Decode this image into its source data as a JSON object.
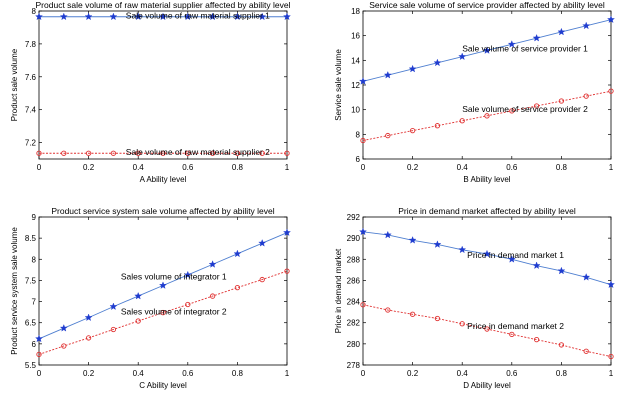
{
  "chart_data": [
    {
      "type": "line",
      "title": "Product sale volume of raw material supplier affected by ability level",
      "xlabel": "A   Ability level",
      "ylabel": "Product sale volume",
      "xlim": [
        0,
        1
      ],
      "ylim": [
        7.1,
        8
      ],
      "xticks": [
        0,
        0.2,
        0.4,
        0.6,
        0.8,
        1
      ],
      "yticks": [
        7.2,
        7.4,
        7.6,
        7.8,
        8
      ],
      "x": [
        0,
        0.1,
        0.2,
        0.3,
        0.4,
        0.5,
        0.6,
        0.7,
        0.8,
        0.9,
        1
      ],
      "series": [
        {
          "values": [
            7.965,
            7.965,
            7.965,
            7.965,
            7.965,
            7.965,
            7.965,
            7.965,
            7.965,
            7.965,
            7.965
          ],
          "color": "#1f3ccf",
          "line_color": "#4f7fd0",
          "marker": "star"
        },
        {
          "values": [
            7.135,
            7.135,
            7.135,
            7.135,
            7.135,
            7.135,
            7.135,
            7.135,
            7.135,
            7.135,
            7.135
          ],
          "color": "#e03030",
          "line_color": "#e03030",
          "marker": "circle"
        }
      ],
      "annotations": [
        {
          "text": "Sale volume of raw material supplier 1",
          "x": 0.35,
          "y": 7.955
        },
        {
          "text": "Sale volume of raw material supplier 2",
          "x": 0.35,
          "y": 7.125
        }
      ]
    },
    {
      "type": "line",
      "title": "Service sale volume of service provider affected by ability level",
      "xlabel": "B   Ability level",
      "ylabel": "Service sale volume",
      "xlim": [
        0,
        1
      ],
      "ylim": [
        6,
        18
      ],
      "xticks": [
        0,
        0.2,
        0.4,
        0.6,
        0.8,
        1
      ],
      "yticks": [
        6,
        8,
        10,
        12,
        14,
        16,
        18
      ],
      "x": [
        0,
        0.1,
        0.2,
        0.3,
        0.4,
        0.5,
        0.6,
        0.7,
        0.8,
        0.9,
        1
      ],
      "series": [
        {
          "values": [
            12.3,
            12.8,
            13.3,
            13.8,
            14.3,
            14.8,
            15.3,
            15.8,
            16.3,
            16.8,
            17.3
          ],
          "color": "#1f3ccf",
          "line_color": "#4f7fd0",
          "marker": "star"
        },
        {
          "values": [
            7.5,
            7.9,
            8.3,
            8.7,
            9.1,
            9.5,
            9.9,
            10.3,
            10.7,
            11.1,
            11.5
          ],
          "color": "#e03030",
          "line_color": "#e03030",
          "marker": "circle"
        }
      ],
      "annotations": [
        {
          "text": "Sale volume of service provider 1",
          "x": 0.4,
          "y": 14.7
        },
        {
          "text": "Sale volume of service provider 2",
          "x": 0.4,
          "y": 9.8
        }
      ]
    },
    {
      "type": "line",
      "title": "Product service system sale volume  affected by ability level",
      "xlabel": "C   Ability level",
      "ylabel": "Product service system sale volume",
      "xlim": [
        0,
        1
      ],
      "ylim": [
        5.5,
        9
      ],
      "xticks": [
        0,
        0.2,
        0.4,
        0.6,
        0.8,
        1
      ],
      "yticks": [
        5.5,
        6,
        6.5,
        7,
        7.5,
        8,
        8.5,
        9
      ],
      "xticklabels": [
        "0",
        "0.2",
        "0.4",
        "0.6",
        "0.8",
        "1"
      ],
      "x": [
        0,
        0.1,
        0.2,
        0.3,
        0.4,
        0.5,
        0.6,
        0.7,
        0.8,
        0.9,
        1
      ],
      "series": [
        {
          "values": [
            6.12,
            6.37,
            6.62,
            6.88,
            7.13,
            7.38,
            7.63,
            7.88,
            8.13,
            8.38,
            8.63
          ],
          "color": "#1f3ccf",
          "line_color": "#4f7fd0",
          "marker": "star"
        },
        {
          "values": [
            5.75,
            5.95,
            6.14,
            6.34,
            6.54,
            6.74,
            6.93,
            7.13,
            7.33,
            7.52,
            7.72
          ],
          "color": "#e03030",
          "line_color": "#e03030",
          "marker": "circle"
        }
      ],
      "annotations": [
        {
          "text": "Sales volume of integrator 1",
          "x": 0.33,
          "y": 7.52
        },
        {
          "text": "Sales volume of integrator 2",
          "x": 0.33,
          "y": 6.7
        }
      ]
    },
    {
      "type": "line",
      "title": "Price in demand market affected by ability level",
      "xlabel": "D   Ability level",
      "ylabel": "Price in demand market",
      "xlim": [
        0,
        1
      ],
      "ylim": [
        278,
        292
      ],
      "xticks": [
        0,
        0.2,
        0.4,
        0.6,
        0.8,
        1
      ],
      "yticks": [
        278,
        280,
        282,
        284,
        286,
        288,
        290,
        292
      ],
      "x": [
        0,
        0.1,
        0.2,
        0.3,
        0.4,
        0.5,
        0.6,
        0.7,
        0.8,
        0.9,
        1
      ],
      "series": [
        {
          "values": [
            290.6,
            290.3,
            289.8,
            289.4,
            288.9,
            288.5,
            288.0,
            287.4,
            286.9,
            286.3,
            285.6
          ],
          "color": "#1f3ccf",
          "line_color": "#4f7fd0",
          "marker": "star"
        },
        {
          "values": [
            283.7,
            283.2,
            282.8,
            282.4,
            281.9,
            281.4,
            280.9,
            280.4,
            279.9,
            279.3,
            278.8
          ],
          "color": "#e03030",
          "line_color": "#e03030",
          "marker": "circle"
        }
      ],
      "annotations": [
        {
          "text": "Price in demand market 1",
          "x": 0.42,
          "y": 288.1
        },
        {
          "text": "Price in demand market 2",
          "x": 0.42,
          "y": 281.4
        }
      ]
    }
  ]
}
